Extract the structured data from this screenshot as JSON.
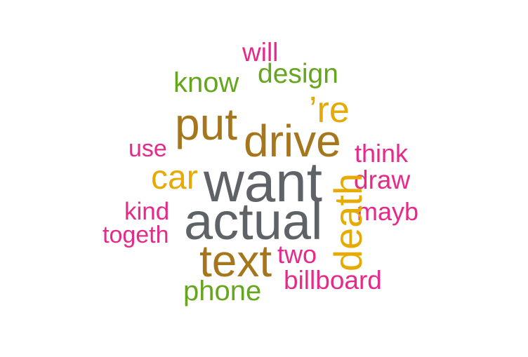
{
  "wordcloud": {
    "words": {
      "will": {
        "text": "will",
        "color": "#e7298a"
      },
      "design": {
        "text": "design",
        "color": "#66a61e"
      },
      "know": {
        "text": "know",
        "color": "#66a61e"
      },
      "re": {
        "text": "’re",
        "color": "#e6ab02"
      },
      "put": {
        "text": "put",
        "color": "#a6761d"
      },
      "drive": {
        "text": "drive",
        "color": "#a6761d"
      },
      "use": {
        "text": "use",
        "color": "#e7298a"
      },
      "think": {
        "text": "think",
        "color": "#e7298a"
      },
      "car": {
        "text": "car",
        "color": "#e6ab02"
      },
      "want": {
        "text": "want",
        "color": "#5f6368"
      },
      "draw": {
        "text": "draw",
        "color": "#e7298a"
      },
      "kind": {
        "text": "kind",
        "color": "#e7298a"
      },
      "maybe": {
        "text": "mayb",
        "color": "#e7298a"
      },
      "actual": {
        "text": "actual",
        "color": "#5f6368"
      },
      "death": {
        "text": "death",
        "color": "#e6ab02"
      },
      "together": {
        "text": "togeth",
        "color": "#e7298a"
      },
      "text": {
        "text": "text",
        "color": "#a6761d"
      },
      "two": {
        "text": "two",
        "color": "#e7298a"
      },
      "billboard": {
        "text": "billboard",
        "color": "#e7298a"
      },
      "phone": {
        "text": "phone",
        "color": "#66a61e"
      }
    }
  }
}
